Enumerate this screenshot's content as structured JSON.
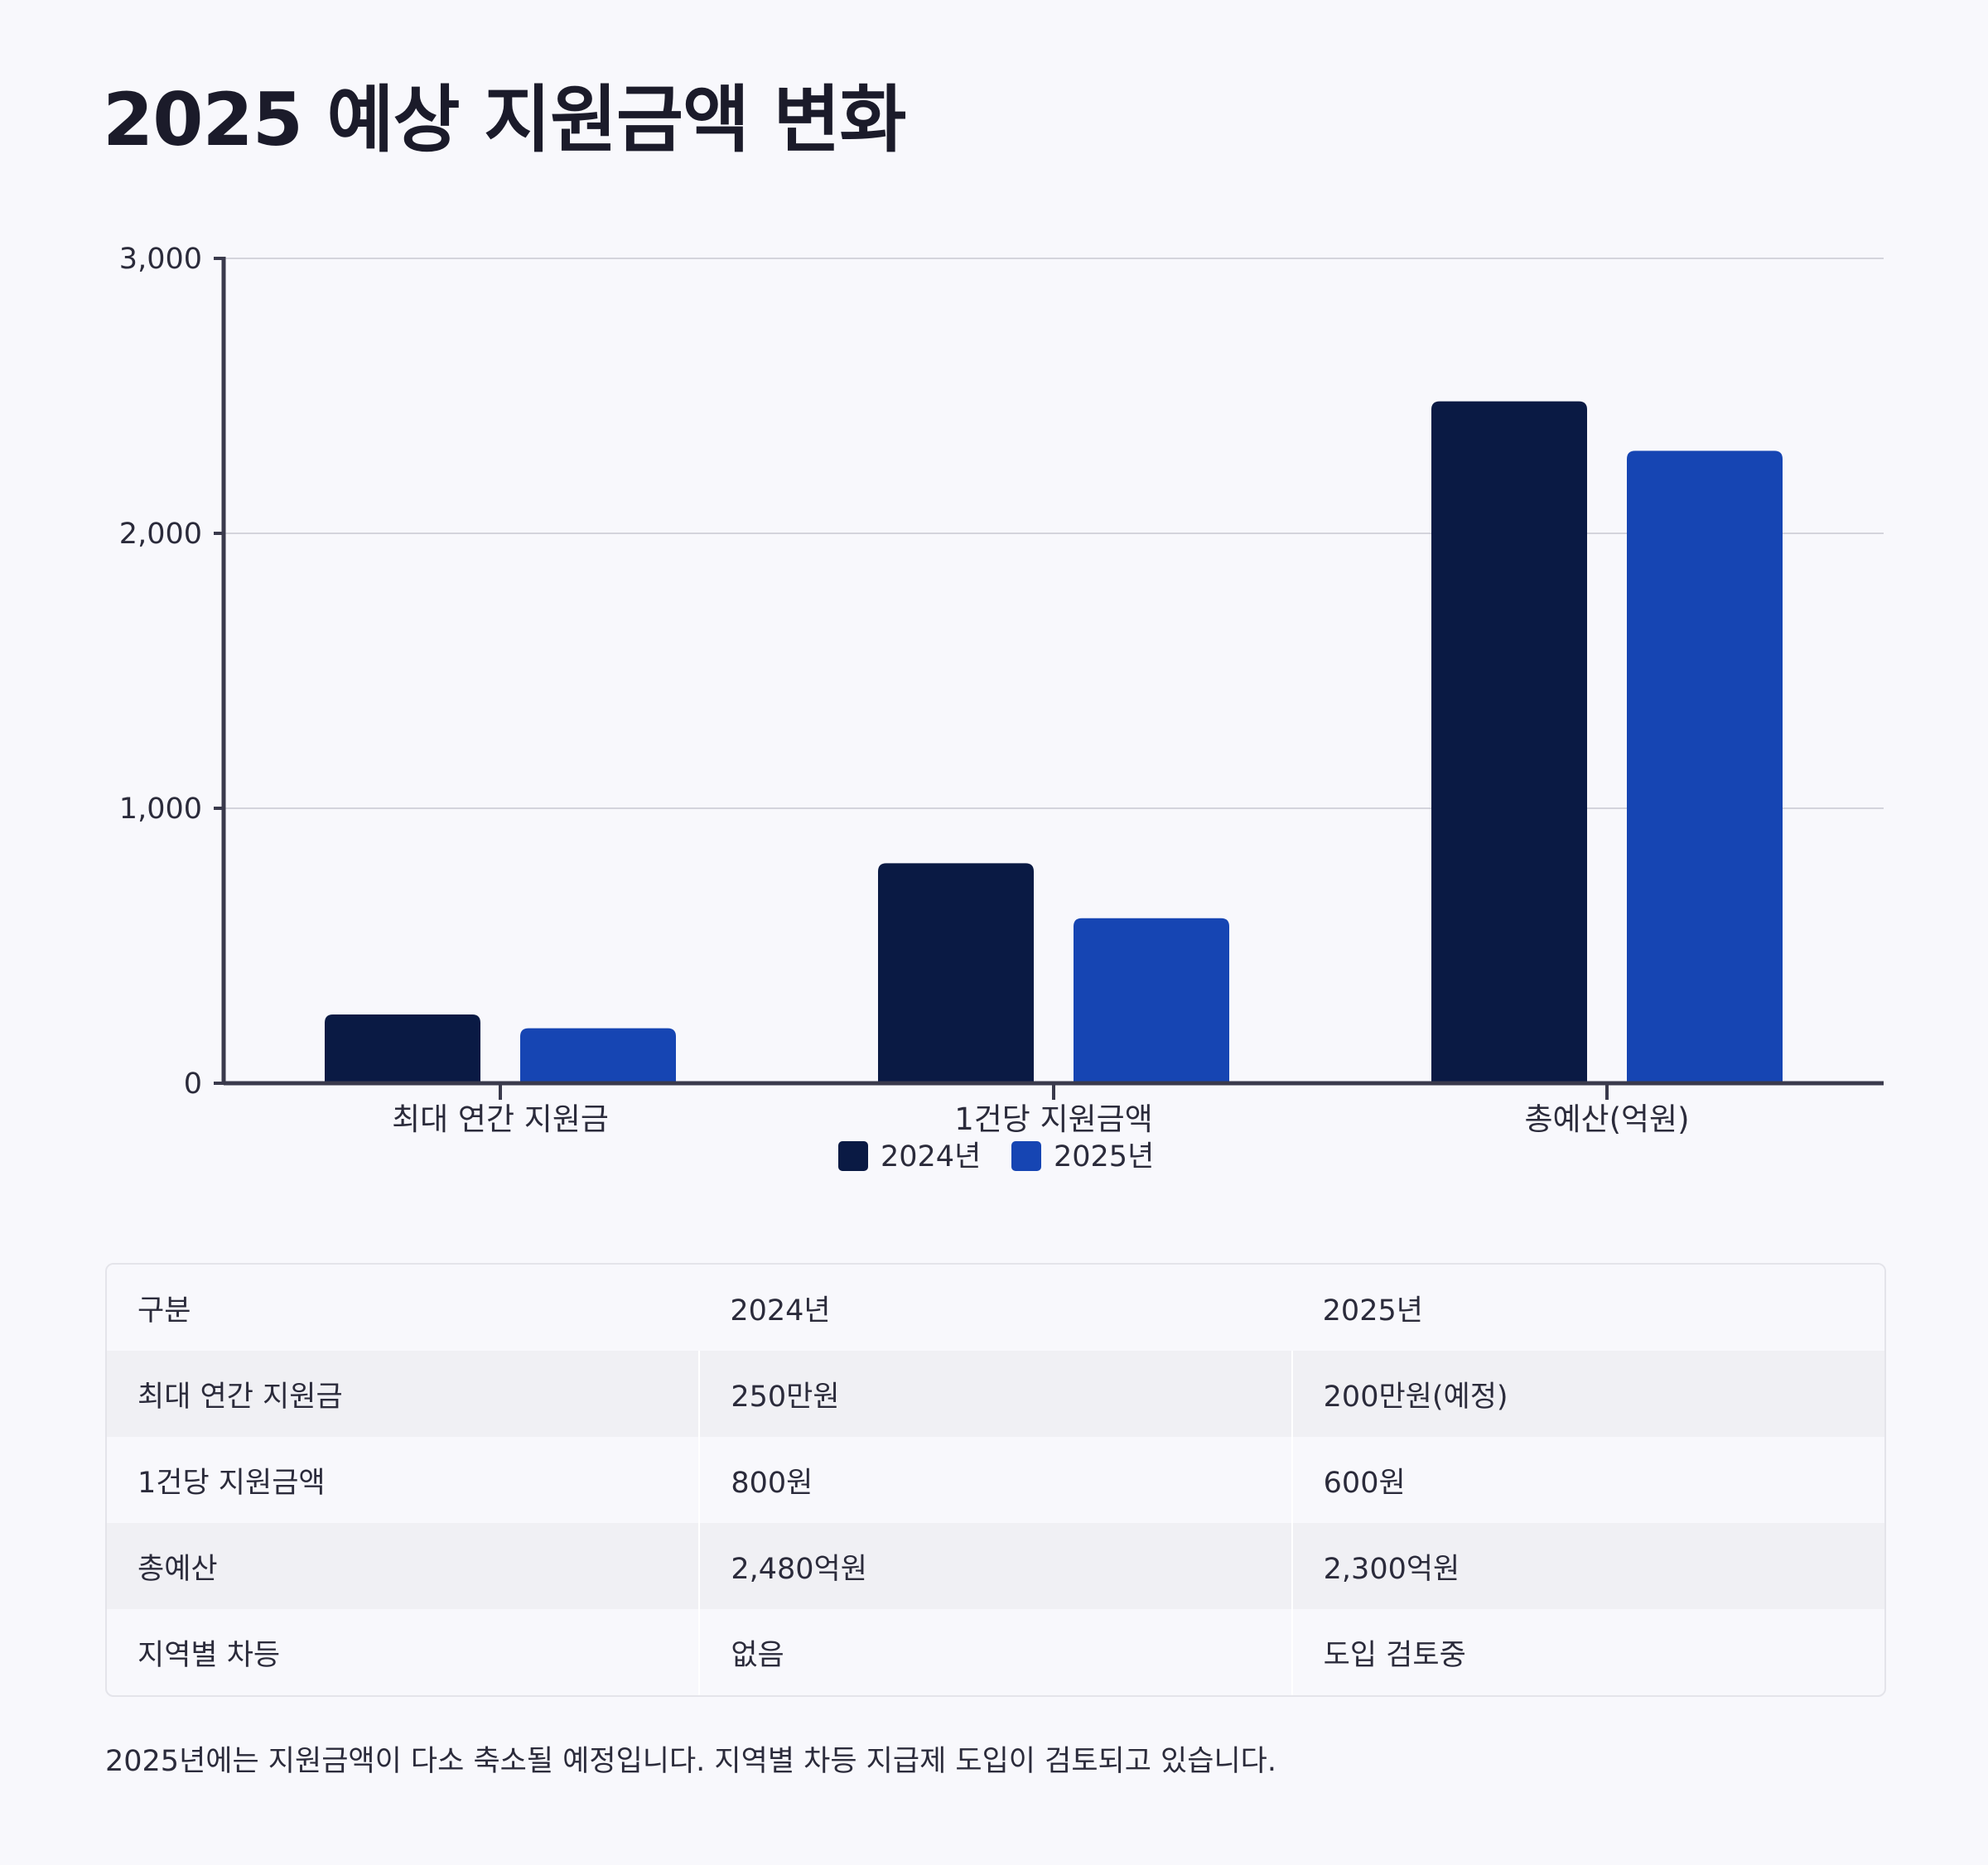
{
  "title": "2025 예상 지원금액 변화",
  "chart_data": {
    "type": "bar",
    "categories": [
      "최대 연간 지원금",
      "1건당 지원금액",
      "총예산(억원)"
    ],
    "series": [
      {
        "name": "2024년",
        "values": [
          250,
          800,
          2480
        ],
        "color": "#0a1a44"
      },
      {
        "name": "2025년",
        "values": [
          200,
          600,
          2300
        ],
        "color": "#1645b3"
      }
    ],
    "yticks": [
      "0",
      "1,000",
      "2,000",
      "3,000"
    ],
    "ylim": [
      0,
      3000
    ],
    "grid": true,
    "legend_position": "bottom-center"
  },
  "table": {
    "headers": [
      "구분",
      "2024년",
      "2025년"
    ],
    "rows": [
      [
        "최대 연간 지원금",
        "250만원",
        "200만원(예정)"
      ],
      [
        "1건당 지원금액",
        "800원",
        "600원"
      ],
      [
        "총예산",
        "2,480억원",
        "2,300억원"
      ],
      [
        "지역별 차등",
        "없음",
        "도입 검토중"
      ]
    ]
  },
  "note": "2025년에는 지원금액이 다소 축소될 예정입니다. 지역별 차등 지급제 도입이 검토되고 있습니다."
}
